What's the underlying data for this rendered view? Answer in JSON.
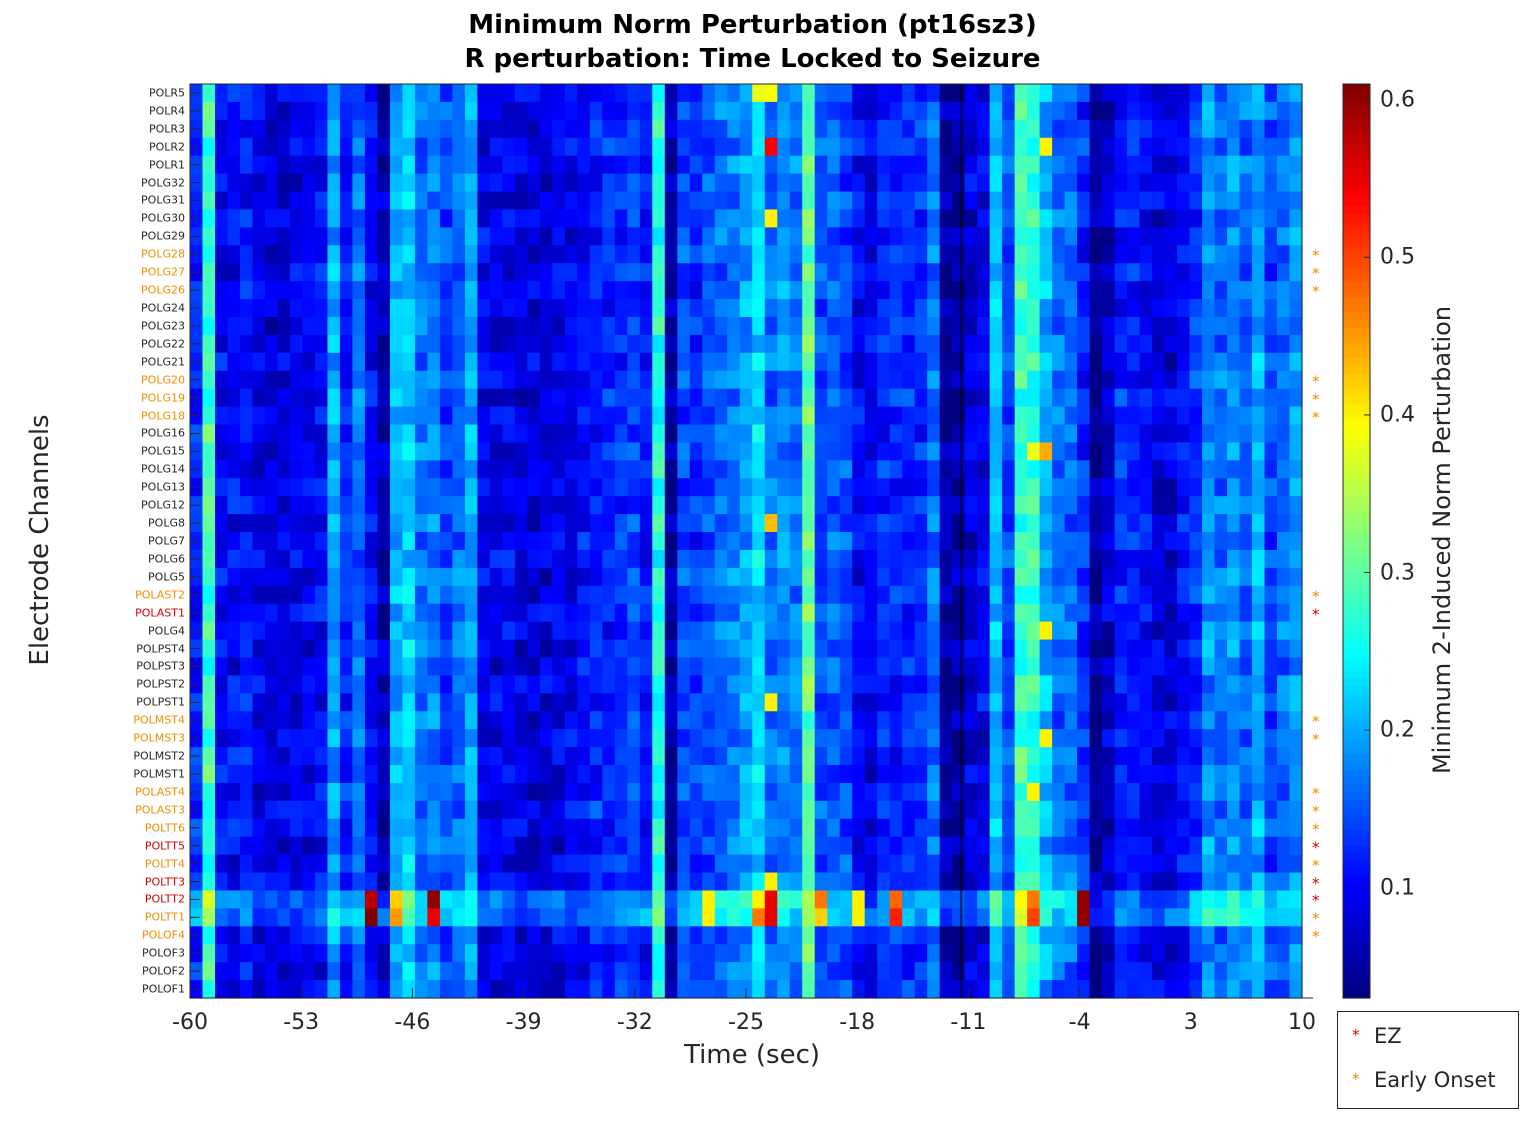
{
  "chart_data": {
    "type": "heatmap",
    "title": "Minimum Norm Perturbation (pt16sz3)",
    "subtitle": "R perturbation:  Time Locked to Seizure",
    "xlabel": "Time (sec)",
    "ylabel": "Electrode Channels",
    "colorbar_label": "Minimum 2-Induced Norm Perturbation",
    "colormap": "jet",
    "clim": [
      0.03,
      0.61
    ],
    "xlim": [
      -60,
      10
    ],
    "x_ticks": [
      "-60",
      "-53",
      "-46",
      "-39",
      "-32",
      "-25",
      "-18",
      "-11",
      "-4",
      "3",
      "10"
    ],
    "colorbar_ticks": [
      "0.1",
      "0.2",
      "0.3",
      "0.4",
      "0.5",
      "0.6"
    ],
    "colorbar_tick_values": [
      0.1,
      0.2,
      0.3,
      0.4,
      0.5,
      0.6
    ],
    "seizure_onset_sec": 0,
    "channels": [
      "POLR5",
      "POLR4",
      "POLR3",
      "POLR2",
      "POLR1",
      "POLG32",
      "POLG31",
      "POLG30",
      "POLG29",
      "POLG28",
      "POLG27",
      "POLG26",
      "POLG24",
      "POLG23",
      "POLG22",
      "POLG21",
      "POLG20",
      "POLG19",
      "POLG18",
      "POLG16",
      "POLG15",
      "POLG14",
      "POLG13",
      "POLG12",
      "POLG8",
      "POLG7",
      "POLG6",
      "POLG5",
      "POLAST2",
      "POLAST1",
      "POLG4",
      "POLPST4",
      "POLPST3",
      "POLPST2",
      "POLPST1",
      "POLMST4",
      "POLMST3",
      "POLMST2",
      "POLMST1",
      "POLAST4",
      "POLAST3",
      "POLTT6",
      "POLTT5",
      "POLTT4",
      "POLTT3",
      "POLTT2",
      "POLTT1",
      "POLOF4",
      "POLOF3",
      "POLOF2",
      "POLOF1"
    ],
    "channel_groups": {
      "EZ": [
        "POLAST1",
        "POLTT5",
        "POLTT3",
        "POLTT2"
      ],
      "Early Onset": [
        "POLG28",
        "POLG27",
        "POLG26",
        "POLG20",
        "POLG19",
        "POLG18",
        "POLAST2",
        "POLMST4",
        "POLMST3",
        "POLAST4",
        "POLAST3",
        "POLTT6",
        "POLTT4",
        "POLTT1",
        "POLOF4"
      ]
    },
    "column_baseline": [
      0.12,
      0.28,
      0.1,
      0.1,
      0.11,
      0.09,
      0.08,
      0.08,
      0.09,
      0.09,
      0.1,
      0.19,
      0.12,
      0.16,
      0.1,
      0.06,
      0.2,
      0.22,
      0.16,
      0.17,
      0.14,
      0.16,
      0.19,
      0.09,
      0.09,
      0.09,
      0.08,
      0.08,
      0.08,
      0.09,
      0.09,
      0.1,
      0.12,
      0.12,
      0.13,
      0.14,
      0.11,
      0.26,
      0.05,
      0.14,
      0.12,
      0.14,
      0.16,
      0.17,
      0.19,
      0.22,
      0.16,
      0.18,
      0.17,
      0.3,
      0.14,
      0.15,
      0.14,
      0.1,
      0.09,
      0.12,
      0.12,
      0.12,
      0.12,
      0.16,
      0.05,
      0.05,
      0.08,
      0.09,
      0.2,
      0.14,
      0.28,
      0.27,
      0.2,
      0.16,
      0.16,
      0.12,
      0.04,
      0.07,
      0.12,
      0.11,
      0.1,
      0.08,
      0.08,
      0.1,
      0.13,
      0.18,
      0.16,
      0.18,
      0.16,
      0.2,
      0.14,
      0.16,
      0.18
    ],
    "hotspots": [
      {
        "channel": "POLR5",
        "time": -23.5,
        "value": 0.39
      },
      {
        "channel": "POLR5",
        "time": -24.8,
        "value": 0.38
      },
      {
        "channel": "POLR2",
        "time": -23.5,
        "value": 0.54
      },
      {
        "channel": "POLR2",
        "time": -6.5,
        "value": 0.4
      },
      {
        "channel": "POLG30",
        "time": -23.5,
        "value": 0.4
      },
      {
        "channel": "POLG8",
        "time": -23.5,
        "value": 0.43
      },
      {
        "channel": "POLG15",
        "time": -6.2,
        "value": 0.44
      },
      {
        "channel": "POLG15",
        "time": -7.2,
        "value": 0.38
      },
      {
        "channel": "POLG4",
        "time": -6.5,
        "value": 0.4
      },
      {
        "channel": "POLPST1",
        "time": -23.5,
        "value": 0.4
      },
      {
        "channel": "POLMST3",
        "time": -6.5,
        "value": 0.4
      },
      {
        "channel": "POLAST4",
        "time": -7.2,
        "value": 0.4
      },
      {
        "channel": "POLTT3",
        "time": -23.5,
        "value": 0.4
      },
      {
        "channel": "POLTT2",
        "time": -48.8,
        "value": 0.58
      },
      {
        "channel": "POLTT2",
        "time": -47.8,
        "value": 0.42
      },
      {
        "channel": "POLTT2",
        "time": -45.0,
        "value": 0.6
      },
      {
        "channel": "POLTT2",
        "time": -23.5,
        "value": 0.55
      },
      {
        "channel": "POLTT2",
        "time": -21.0,
        "value": 0.47
      },
      {
        "channel": "POLTT2",
        "time": -18.0,
        "value": 0.4
      },
      {
        "channel": "POLTT2",
        "time": -16.2,
        "value": 0.48
      },
      {
        "channel": "POLTT2",
        "time": -7.2,
        "value": 0.47
      },
      {
        "channel": "POLTT2",
        "time": -4.0,
        "value": 0.6
      },
      {
        "channel": "POLTT2",
        "time": -25.0,
        "value": 0.4
      },
      {
        "channel": "POLTT2",
        "time": -27.8,
        "value": 0.4
      },
      {
        "channel": "POLTT1",
        "time": -48.8,
        "value": 0.61
      },
      {
        "channel": "POLTT1",
        "time": -47.8,
        "value": 0.45
      },
      {
        "channel": "POLTT1",
        "time": -45.0,
        "value": 0.55
      },
      {
        "channel": "POLTT1",
        "time": -24.5,
        "value": 0.47
      },
      {
        "channel": "POLTT1",
        "time": -23.5,
        "value": 0.55
      },
      {
        "channel": "POLTT1",
        "time": -21.0,
        "value": 0.42
      },
      {
        "channel": "POLTT1",
        "time": -18.0,
        "value": 0.4
      },
      {
        "channel": "POLTT1",
        "time": -16.2,
        "value": 0.52
      },
      {
        "channel": "POLTT1",
        "time": -7.2,
        "value": 0.5
      },
      {
        "channel": "POLTT1",
        "time": -4.0,
        "value": 0.6
      },
      {
        "channel": "POLTT1",
        "time": -27.8,
        "value": 0.4
      }
    ],
    "legend": [
      {
        "marker": "*",
        "label": "EZ",
        "color": "#d40000"
      },
      {
        "marker": "*",
        "label": "Early Onset",
        "color": "#f08c00"
      }
    ],
    "colors": {
      "ez": "#d40000",
      "early_onset": "#f08c00",
      "normal_label": "#262626"
    }
  }
}
